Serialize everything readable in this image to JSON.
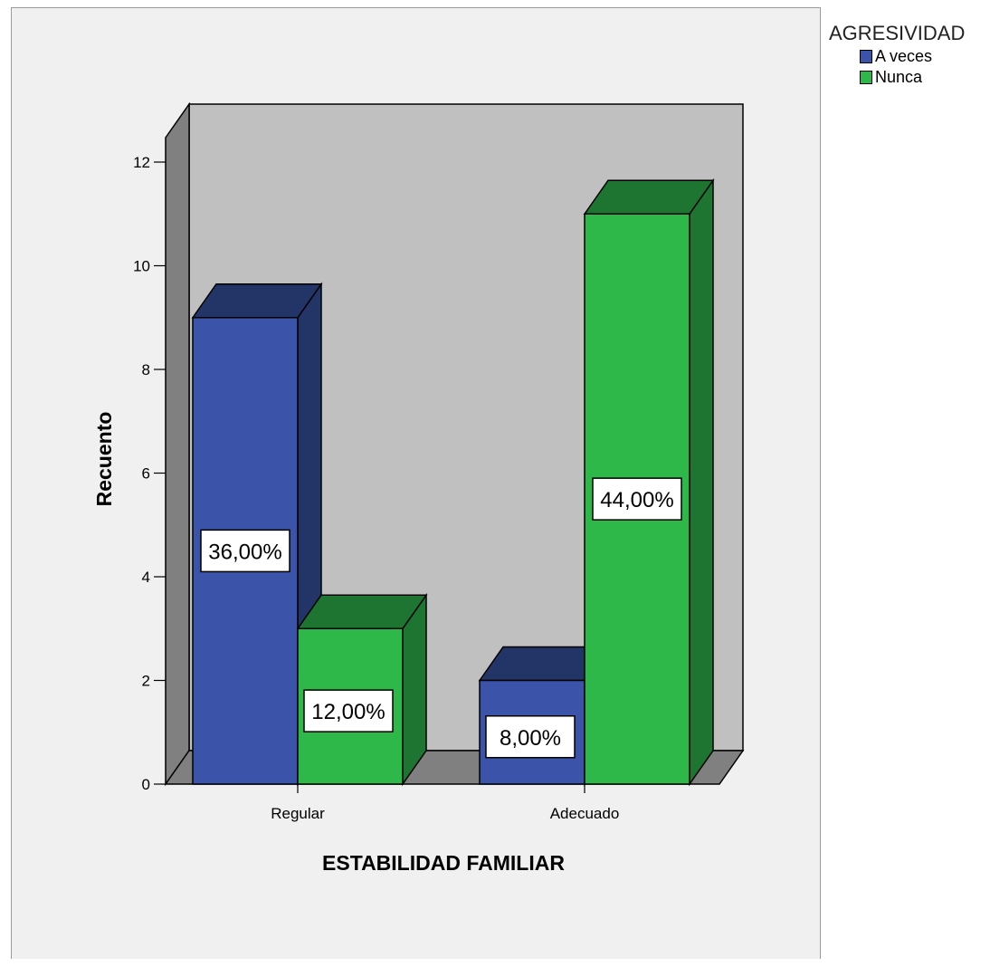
{
  "chart_data": {
    "type": "bar",
    "categories": [
      "Regular",
      "Adecuado"
    ],
    "series": [
      {
        "name": "A veces",
        "values": [
          9,
          2
        ],
        "labels": [
          "36,00%",
          "8,00%"
        ],
        "color": "#3b54aa",
        "top_color": "#233466",
        "side_color": "#233466"
      },
      {
        "name": "Nunca",
        "values": [
          3,
          11
        ],
        "labels": [
          "12,00%",
          "44,00%"
        ],
        "color": "#2eb84a",
        "top_color": "#1d7531",
        "side_color": "#1d7531"
      }
    ],
    "xlabel": "ESTABILIDAD FAMILIAR",
    "ylabel": "Recuento",
    "legend_title": "AGRESIVIDAD",
    "legend_position": "top-right",
    "ylim": [
      0,
      12
    ],
    "yticks": [
      0,
      2,
      4,
      6,
      8,
      10,
      12
    ],
    "plot_background": "#c0c0c0",
    "floor_color": "#808080",
    "grid": false
  }
}
